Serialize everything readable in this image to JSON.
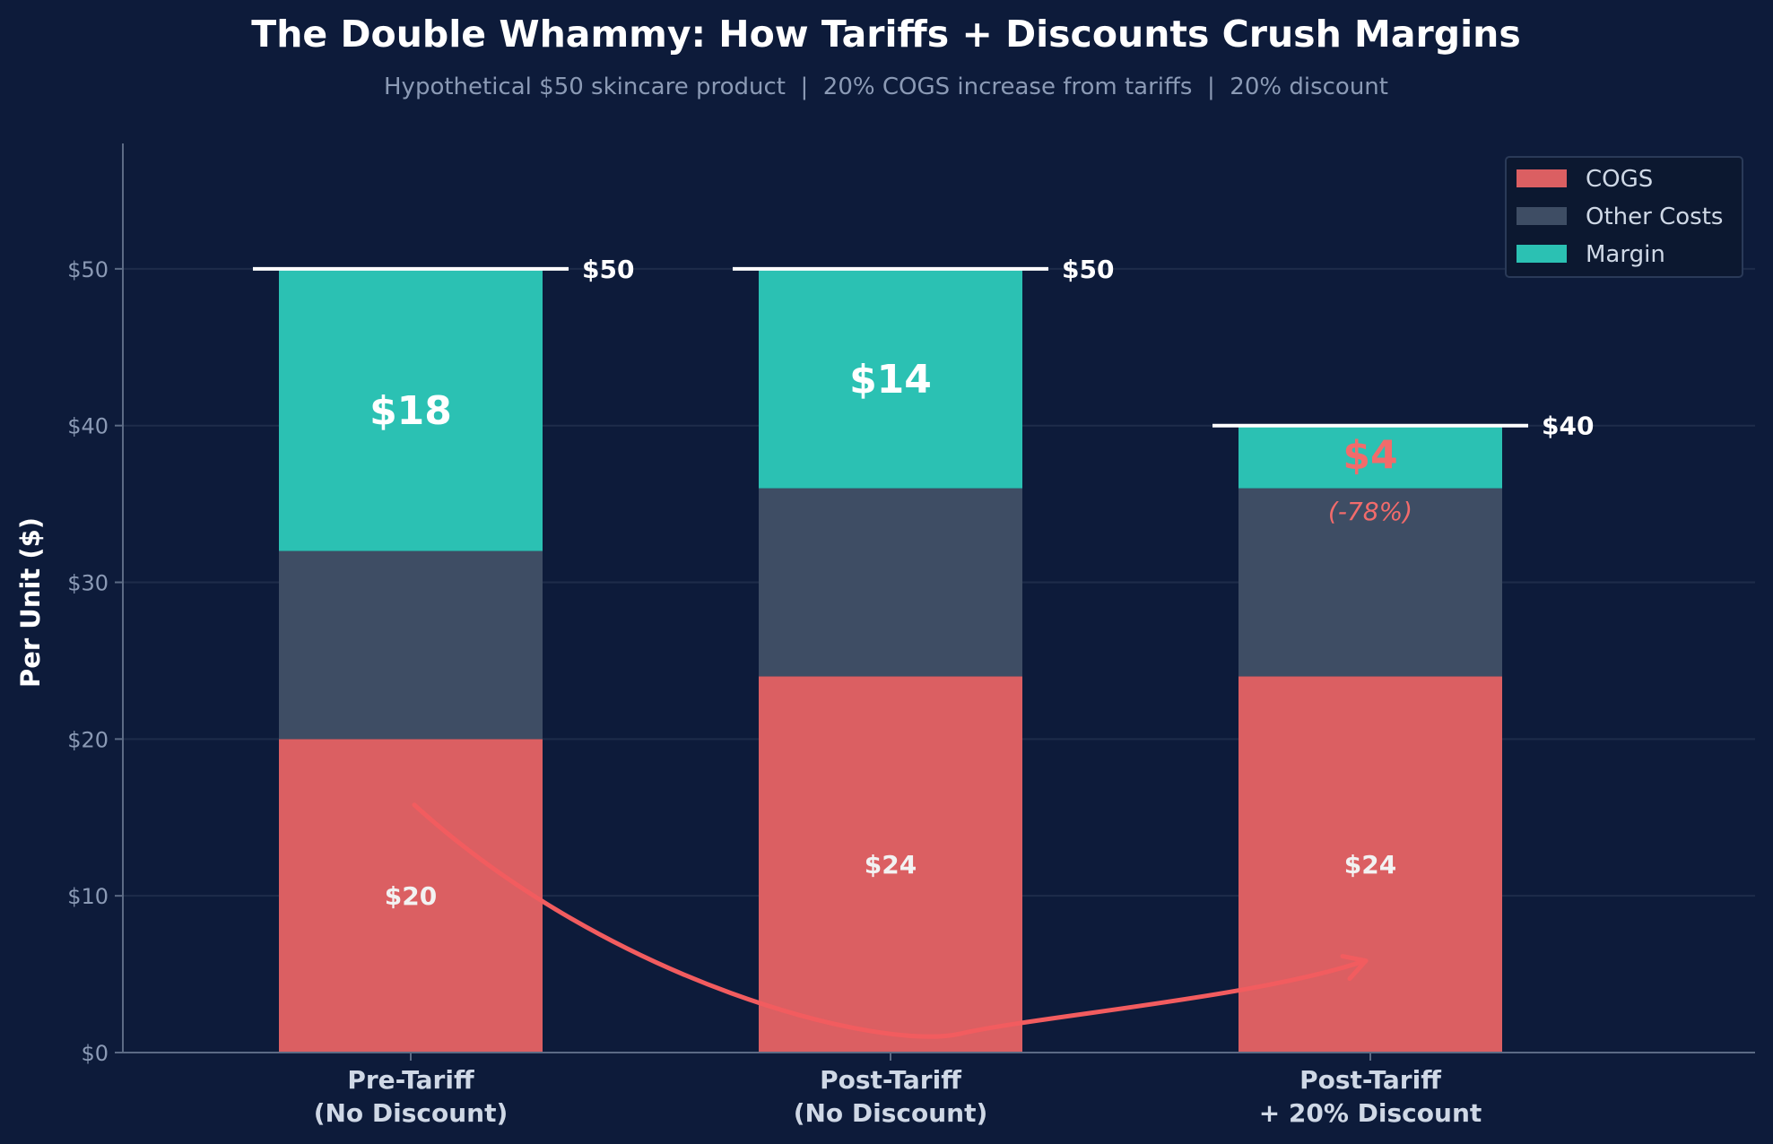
{
  "chart_data": {
    "type": "bar",
    "stacked": true,
    "title": "The Double Whammy: How Tariffs + Discounts Crush Margins",
    "subtitle": "Hypothetical $50 skincare product  |  20% COGS increase from tariffs  |  20% discount",
    "categories": [
      [
        "Pre-Tariff",
        "(No Discount)"
      ],
      [
        "Post-Tariff",
        "(No Discount)"
      ],
      [
        "Post-Tariff",
        "+ 20% Discount"
      ]
    ],
    "series": [
      {
        "name": "COGS",
        "values": [
          20,
          24,
          24
        ],
        "color": "#db5f62"
      },
      {
        "name": "Other Costs",
        "values": [
          12,
          12,
          12
        ],
        "color": "#3e4d64"
      },
      {
        "name": "Margin",
        "values": [
          18,
          14,
          4
        ],
        "color": "#2bc1b3"
      }
    ],
    "totals": [
      50,
      50,
      40
    ],
    "total_labels": [
      "$50",
      "$50",
      "$40"
    ],
    "cogs_labels": [
      "$20",
      "$24",
      "$24"
    ],
    "margin_labels": [
      "$18",
      "$14",
      "$4"
    ],
    "margin_label_colors": [
      "#ffffff",
      "#ffffff",
      "#f26b6b"
    ],
    "margin_change_label": "(-78%)",
    "ylabel": "Per Unit ($)",
    "xlabel": "",
    "ylim": [
      0,
      58
    ],
    "yticks": [
      0,
      10,
      20,
      30,
      40,
      50
    ],
    "ytick_labels": [
      "$0",
      "$10",
      "$20",
      "$30",
      "$40",
      "$50"
    ],
    "grid": true,
    "legend_position": "top-right",
    "arrow": {
      "from_category": 0,
      "to_category": 2,
      "color": "#f25c5f"
    },
    "colors": {
      "background": "#0d1b3a",
      "grid": "#1e2c4a",
      "axis": "#5c6b85",
      "annotation": "#f26b6b",
      "total_line": "#ffffff",
      "legend_bg": "#0c1830",
      "legend_border": "#2a3a58"
    }
  }
}
